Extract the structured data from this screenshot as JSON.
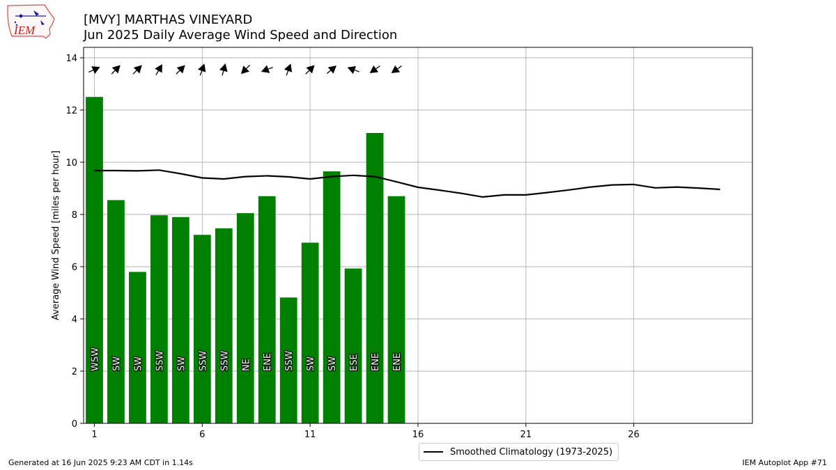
{
  "header": {
    "title_line1": "[MVY] MARTHAS VINEYARD",
    "title_line2": "Jun 2025 Daily Average Wind Speed and Direction",
    "logo_text": "IEM"
  },
  "footer": {
    "left": "Generated at 16 Jun 2025 9:23 AM CDT in 1.14s",
    "right": "IEM Autoplot App #71"
  },
  "legend": {
    "climatology_label": "Smoothed Climatology (1973-2025)"
  },
  "colors": {
    "bar": "#008000",
    "line": "#000000",
    "grid": "#b0b0b0"
  },
  "chart_data": {
    "type": "bar",
    "title": "[MVY] MARTHAS VINEYARD",
    "subtitle": "Jun 2025 Daily Average Wind Speed and Direction",
    "xlabel": "",
    "ylabel": "Average Wind Speed [miles per hour]",
    "xlim": [
      0.5,
      31.5
    ],
    "ylim": [
      0,
      14.4
    ],
    "xticks": [
      1,
      6,
      11,
      16,
      21,
      26
    ],
    "yticks": [
      0,
      2,
      4,
      6,
      8,
      10,
      12,
      14
    ],
    "grid": true,
    "legend_position": "bottom-center, below axes",
    "series": [
      {
        "kind": "bar",
        "days": [
          1,
          2,
          3,
          4,
          5,
          6,
          7,
          8,
          9,
          10,
          11,
          12,
          13,
          14,
          15
        ],
        "values": [
          12.5,
          8.55,
          5.8,
          7.97,
          7.9,
          7.22,
          7.47,
          8.05,
          8.7,
          4.82,
          6.92,
          9.65,
          5.93,
          11.12,
          8.7
        ],
        "direction_labels": [
          "WSW",
          "SW",
          "SW",
          "SSW",
          "SW",
          "SSW",
          "SSW",
          "NE",
          "ENE",
          "SSW",
          "SW",
          "SW",
          "ESE",
          "ENE",
          "ENE"
        ],
        "direction_degrees": [
          245,
          225,
          225,
          210,
          225,
          200,
          195,
          45,
          70,
          200,
          225,
          230,
          110,
          55,
          55
        ]
      },
      {
        "kind": "line",
        "name": "Smoothed Climatology (1973-2025)",
        "days": [
          1,
          2,
          3,
          4,
          5,
          6,
          7,
          8,
          9,
          10,
          11,
          12,
          13,
          14,
          15,
          16,
          17,
          18,
          19,
          20,
          21,
          22,
          23,
          24,
          25,
          26,
          27,
          28,
          29,
          30
        ],
        "values": [
          9.68,
          9.68,
          9.67,
          9.7,
          9.56,
          9.4,
          9.36,
          9.45,
          9.48,
          9.44,
          9.36,
          9.45,
          9.5,
          9.45,
          9.25,
          9.04,
          8.93,
          8.81,
          8.67,
          8.75,
          8.75,
          8.84,
          8.94,
          9.05,
          9.13,
          9.15,
          9.02,
          9.05,
          9.01,
          8.96
        ]
      }
    ]
  }
}
